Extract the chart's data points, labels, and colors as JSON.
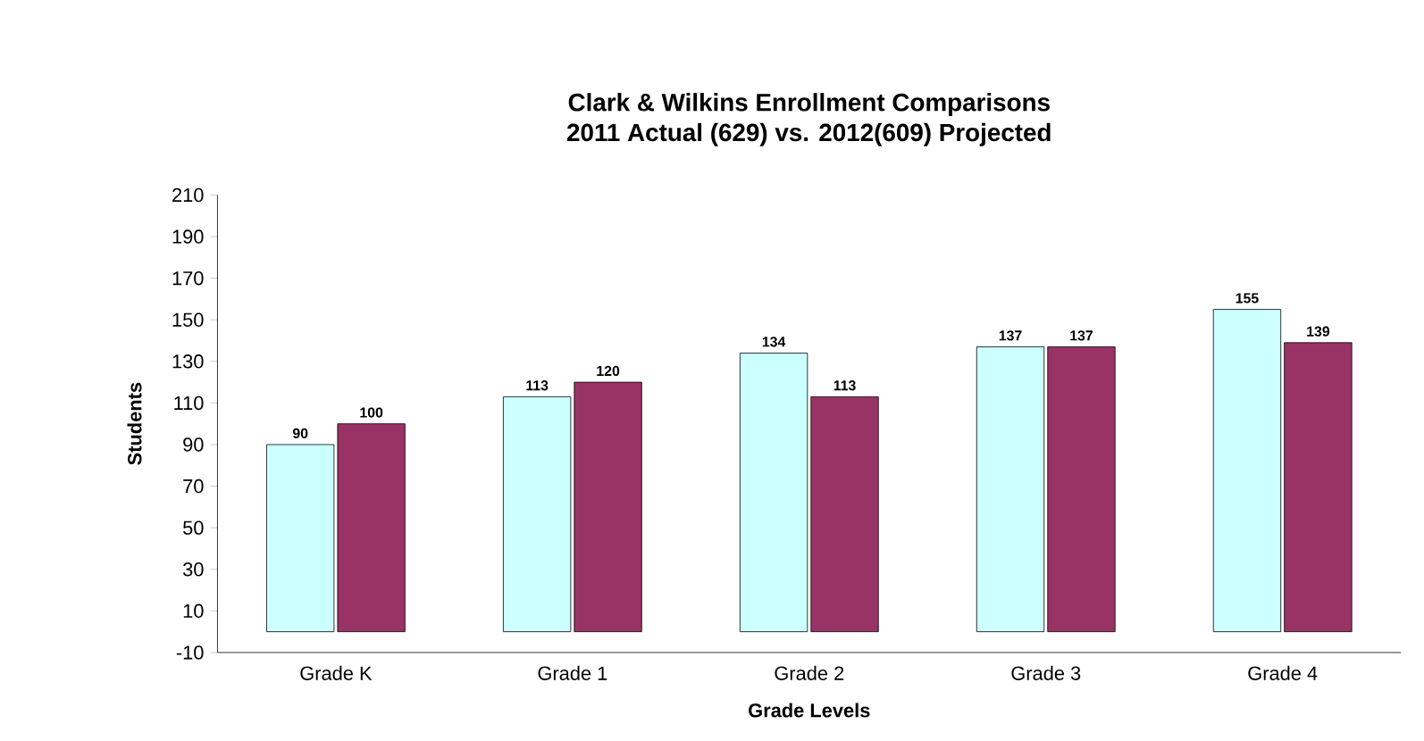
{
  "chart_data": {
    "type": "bar",
    "title": "Clark & Wilkins Enrollment Comparisons",
    "subtitle": "2011 Actual (629) vs. 2012(609) Projected",
    "xlabel": "Grade Levels",
    "ylabel": "Students",
    "categories": [
      "Grade K",
      "Grade 1",
      "Grade 2",
      "Grade 3",
      "Grade 4"
    ],
    "series": [
      {
        "color": "#ccffff",
        "values": [
          90,
          113,
          134,
          137,
          155
        ]
      },
      {
        "color": "#993366",
        "values": [
          100,
          120,
          113,
          137,
          139
        ]
      }
    ],
    "ylim": [
      -10,
      210
    ],
    "yticks": [
      -10,
      10,
      30,
      50,
      70,
      90,
      110,
      130,
      150,
      170,
      190,
      210
    ],
    "data_labels": true,
    "grid": false
  }
}
